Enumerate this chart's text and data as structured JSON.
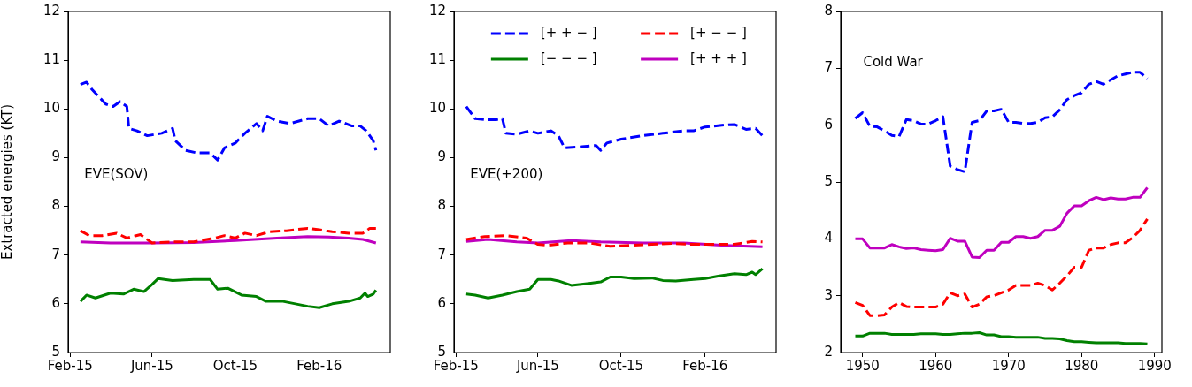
{
  "chart_data": [
    {
      "type": "line",
      "ylabel": "Extracted energies (KT)",
      "annotations": [
        "EVE(SOV)"
      ],
      "xlim": [
        "2015-01-29",
        "2016-05-15"
      ],
      "xticks": [
        {
          "value": "2015-02-01",
          "label": "Feb-15"
        },
        {
          "value": "2015-06-01",
          "label": "Jun-15"
        },
        {
          "value": "2015-10-01",
          "label": "Oct-15"
        },
        {
          "value": "2016-02-01",
          "label": "Feb-16"
        }
      ],
      "ylim": [
        5,
        12
      ],
      "yticks": [
        5,
        6,
        7,
        8,
        9,
        10,
        11,
        12
      ],
      "series": [
        {
          "color": "#0000ff",
          "line_style": "dashed",
          "x": [
            "2015-02-16",
            "2015-02-25",
            "2015-03-05",
            "2015-03-15",
            "2015-03-25",
            "2015-04-05",
            "2015-04-15",
            "2015-04-25",
            "2015-04-28",
            "2015-05-10",
            "2015-05-25",
            "2015-06-15",
            "2015-07-01",
            "2015-07-05",
            "2015-07-20",
            "2015-08-05",
            "2015-08-25",
            "2015-09-05",
            "2015-09-15",
            "2015-10-01",
            "2015-10-15",
            "2015-11-01",
            "2015-11-10",
            "2015-11-17",
            "2015-12-01",
            "2015-12-20",
            "2016-01-15",
            "2016-02-01",
            "2016-02-15",
            "2016-03-01",
            "2016-03-20",
            "2016-04-01",
            "2016-04-10",
            "2016-04-20",
            "2016-04-24"
          ],
          "values": [
            10.5,
            10.55,
            10.4,
            10.25,
            10.1,
            10.05,
            10.15,
            10.05,
            9.6,
            9.55,
            9.45,
            9.5,
            9.6,
            9.35,
            9.15,
            9.1,
            9.1,
            8.95,
            9.2,
            9.3,
            9.5,
            9.7,
            9.55,
            9.85,
            9.75,
            9.7,
            9.8,
            9.8,
            9.65,
            9.75,
            9.65,
            9.65,
            9.55,
            9.35,
            9.15
          ]
        },
        {
          "color": "#ff0000",
          "line_style": "dashed",
          "x": [
            "2015-02-16",
            "2015-03-01",
            "2015-03-20",
            "2015-04-10",
            "2015-04-25",
            "2015-05-15",
            "2015-06-01",
            "2015-07-01",
            "2015-08-01",
            "2015-09-01",
            "2015-09-15",
            "2015-10-01",
            "2015-10-15",
            "2015-11-01",
            "2015-11-20",
            "2015-12-15",
            "2016-01-15",
            "2016-02-01",
            "2016-02-20",
            "2016-03-15",
            "2016-04-05",
            "2016-04-15",
            "2016-04-24"
          ],
          "values": [
            7.5,
            7.4,
            7.4,
            7.45,
            7.35,
            7.42,
            7.25,
            7.27,
            7.27,
            7.35,
            7.4,
            7.35,
            7.45,
            7.4,
            7.48,
            7.5,
            7.55,
            7.52,
            7.48,
            7.45,
            7.45,
            7.55,
            7.55
          ]
        },
        {
          "color": "#008000",
          "line_style": "solid",
          "x": [
            "2015-02-16",
            "2015-02-25",
            "2015-03-10",
            "2015-04-01",
            "2015-04-20",
            "2015-05-05",
            "2015-05-20",
            "2015-06-01",
            "2015-06-10",
            "2015-07-01",
            "2015-08-01",
            "2015-08-25",
            "2015-09-05",
            "2015-09-20",
            "2015-10-10",
            "2015-11-01",
            "2015-11-15",
            "2015-12-10",
            "2016-01-15",
            "2016-02-01",
            "2016-02-20",
            "2016-03-15",
            "2016-04-01",
            "2016-04-08",
            "2016-04-12",
            "2016-04-20",
            "2016-04-24"
          ],
          "values": [
            6.05,
            6.18,
            6.12,
            6.22,
            6.2,
            6.3,
            6.25,
            6.4,
            6.52,
            6.48,
            6.5,
            6.5,
            6.3,
            6.32,
            6.18,
            6.15,
            6.05,
            6.05,
            5.95,
            5.92,
            6.0,
            6.05,
            6.12,
            6.22,
            6.15,
            6.2,
            6.28
          ]
        },
        {
          "color": "#bf00bf",
          "line_style": "solid",
          "x": [
            "2015-02-16",
            "2015-04-01",
            "2015-06-01",
            "2015-08-01",
            "2015-10-01",
            "2015-12-01",
            "2016-01-15",
            "2016-02-15",
            "2016-03-15",
            "2016-04-05",
            "2016-04-24"
          ],
          "values": [
            7.27,
            7.25,
            7.25,
            7.26,
            7.3,
            7.35,
            7.38,
            7.37,
            7.35,
            7.32,
            7.25
          ]
        }
      ]
    },
    {
      "type": "line",
      "annotations": [
        "EVE(+200)"
      ],
      "legend": "top",
      "xlim": [
        "2015-01-29",
        "2016-05-15"
      ],
      "xticks": [
        {
          "value": "2015-02-01",
          "label": "Feb-15"
        },
        {
          "value": "2015-06-01",
          "label": "Jun-15"
        },
        {
          "value": "2015-10-01",
          "label": "Oct-15"
        },
        {
          "value": "2016-02-01",
          "label": "Feb-16"
        }
      ],
      "ylim": [
        5,
        12
      ],
      "yticks": [
        5,
        6,
        7,
        8,
        9,
        10,
        11,
        12
      ],
      "series": [
        {
          "name": "[+ + − ]",
          "color": "#0000ff",
          "line_style": "dashed",
          "x": [
            "2015-02-16",
            "2015-03-01",
            "2015-03-15",
            "2015-04-01",
            "2015-04-10",
            "2015-04-15",
            "2015-05-01",
            "2015-05-20",
            "2015-06-01",
            "2015-06-20",
            "2015-07-01",
            "2015-07-10",
            "2015-08-01",
            "2015-08-25",
            "2015-09-01",
            "2015-09-10",
            "2015-10-01",
            "2015-11-01",
            "2015-12-01",
            "2016-01-01",
            "2016-01-15",
            "2016-02-01",
            "2016-03-01",
            "2016-03-15",
            "2016-04-01",
            "2016-04-15",
            "2016-04-25"
          ],
          "values": [
            10.05,
            9.8,
            9.78,
            9.78,
            9.8,
            9.5,
            9.48,
            9.55,
            9.5,
            9.55,
            9.45,
            9.2,
            9.22,
            9.25,
            9.15,
            9.3,
            9.38,
            9.45,
            9.5,
            9.55,
            9.55,
            9.63,
            9.67,
            9.68,
            9.58,
            9.6,
            9.45
          ]
        },
        {
          "name": "[+ − − ]",
          "color": "#ff0000",
          "line_style": "dashed",
          "x": [
            "2015-02-16",
            "2015-03-15",
            "2015-04-15",
            "2015-05-15",
            "2015-06-01",
            "2015-06-15",
            "2015-07-15",
            "2015-08-15",
            "2015-09-15",
            "2015-10-15",
            "2015-11-15",
            "2015-12-15",
            "2016-01-15",
            "2016-02-15",
            "2016-03-15",
            "2016-04-10",
            "2016-04-25"
          ],
          "values": [
            7.32,
            7.38,
            7.4,
            7.35,
            7.22,
            7.2,
            7.25,
            7.25,
            7.18,
            7.2,
            7.22,
            7.24,
            7.22,
            7.22,
            7.22,
            7.28,
            7.27
          ]
        },
        {
          "name": "[− − − ]",
          "color": "#008000",
          "line_style": "solid",
          "x": [
            "2015-02-16",
            "2015-03-01",
            "2015-03-20",
            "2015-04-10",
            "2015-05-01",
            "2015-05-20",
            "2015-06-01",
            "2015-06-20",
            "2015-07-01",
            "2015-07-20",
            "2015-08-15",
            "2015-09-01",
            "2015-09-15",
            "2015-10-01",
            "2015-10-20",
            "2015-11-15",
            "2015-12-01",
            "2015-12-20",
            "2016-01-15",
            "2016-02-01",
            "2016-02-20",
            "2016-03-15",
            "2016-04-01",
            "2016-04-10",
            "2016-04-15",
            "2016-04-25"
          ],
          "values": [
            6.2,
            6.18,
            6.12,
            6.18,
            6.25,
            6.3,
            6.5,
            6.5,
            6.47,
            6.38,
            6.42,
            6.45,
            6.55,
            6.55,
            6.52,
            6.53,
            6.48,
            6.47,
            6.5,
            6.52,
            6.57,
            6.62,
            6.6,
            6.65,
            6.6,
            6.72
          ]
        },
        {
          "name": "[+ + + ]",
          "color": "#bf00bf",
          "line_style": "solid",
          "x": [
            "2015-02-16",
            "2015-03-20",
            "2015-05-01",
            "2015-06-01",
            "2015-07-20",
            "2015-09-01",
            "2015-11-01",
            "2016-01-01",
            "2016-03-01",
            "2016-04-25"
          ],
          "values": [
            7.28,
            7.32,
            7.27,
            7.25,
            7.3,
            7.27,
            7.25,
            7.25,
            7.2,
            7.17
          ]
        }
      ]
    },
    {
      "type": "line",
      "annotations": [
        "Cold War"
      ],
      "xlim": [
        1947,
        1991
      ],
      "xticks": [
        1950,
        1960,
        1970,
        1980,
        1990
      ],
      "ylim": [
        2,
        8
      ],
      "yticks": [
        2,
        3,
        4,
        5,
        6,
        7,
        8
      ],
      "x": [
        1949,
        1950,
        1951,
        1952,
        1953,
        1954,
        1955,
        1956,
        1957,
        1958,
        1959,
        1960,
        1961,
        1962,
        1963,
        1964,
        1965,
        1966,
        1967,
        1968,
        1969,
        1970,
        1971,
        1972,
        1973,
        1974,
        1975,
        1976,
        1977,
        1978,
        1979,
        1980,
        1981,
        1982,
        1983,
        1984,
        1985,
        1986,
        1987,
        1988,
        1989
      ],
      "series": [
        {
          "color": "#0000ff",
          "line_style": "dashed",
          "values": [
            6.12,
            6.22,
            5.98,
            5.97,
            5.9,
            5.82,
            5.8,
            6.1,
            6.08,
            6.02,
            6.02,
            6.08,
            6.15,
            5.28,
            5.22,
            5.18,
            6.05,
            6.08,
            6.25,
            6.25,
            6.28,
            6.05,
            6.05,
            6.03,
            6.03,
            6.05,
            6.13,
            6.15,
            6.27,
            6.45,
            6.52,
            6.57,
            6.72,
            6.77,
            6.72,
            6.8,
            6.87,
            6.9,
            6.93,
            6.93,
            6.82
          ]
        },
        {
          "color": "#ff0000",
          "line_style": "dashed",
          "values": [
            2.88,
            2.83,
            2.65,
            2.65,
            2.66,
            2.8,
            2.88,
            2.81,
            2.8,
            2.8,
            2.8,
            2.8,
            2.85,
            3.05,
            3.0,
            3.03,
            2.8,
            2.85,
            2.98,
            3.0,
            3.05,
            3.1,
            3.18,
            3.18,
            3.18,
            3.22,
            3.18,
            3.1,
            3.22,
            3.35,
            3.5,
            3.5,
            3.8,
            3.84,
            3.84,
            3.9,
            3.93,
            3.93,
            4.02,
            4.15,
            4.35
          ]
        },
        {
          "color": "#008000",
          "line_style": "solid",
          "values": [
            2.29,
            2.29,
            2.34,
            2.34,
            2.34,
            2.32,
            2.32,
            2.32,
            2.32,
            2.33,
            2.33,
            2.33,
            2.32,
            2.32,
            2.33,
            2.34,
            2.34,
            2.35,
            2.31,
            2.31,
            2.28,
            2.28,
            2.27,
            2.27,
            2.27,
            2.27,
            2.25,
            2.25,
            2.24,
            2.21,
            2.19,
            2.19,
            2.18,
            2.17,
            2.17,
            2.17,
            2.17,
            2.16,
            2.16,
            2.16,
            2.15
          ]
        },
        {
          "color": "#bf00bf",
          "line_style": "solid",
          "values": [
            4.0,
            4.0,
            3.84,
            3.84,
            3.84,
            3.9,
            3.86,
            3.83,
            3.84,
            3.81,
            3.8,
            3.79,
            3.81,
            4.01,
            3.96,
            3.96,
            3.68,
            3.67,
            3.8,
            3.8,
            3.94,
            3.94,
            4.04,
            4.04,
            4.01,
            4.04,
            4.15,
            4.15,
            4.22,
            4.45,
            4.58,
            4.58,
            4.67,
            4.73,
            4.69,
            4.72,
            4.7,
            4.7,
            4.73,
            4.73,
            4.9
          ]
        }
      ]
    }
  ]
}
